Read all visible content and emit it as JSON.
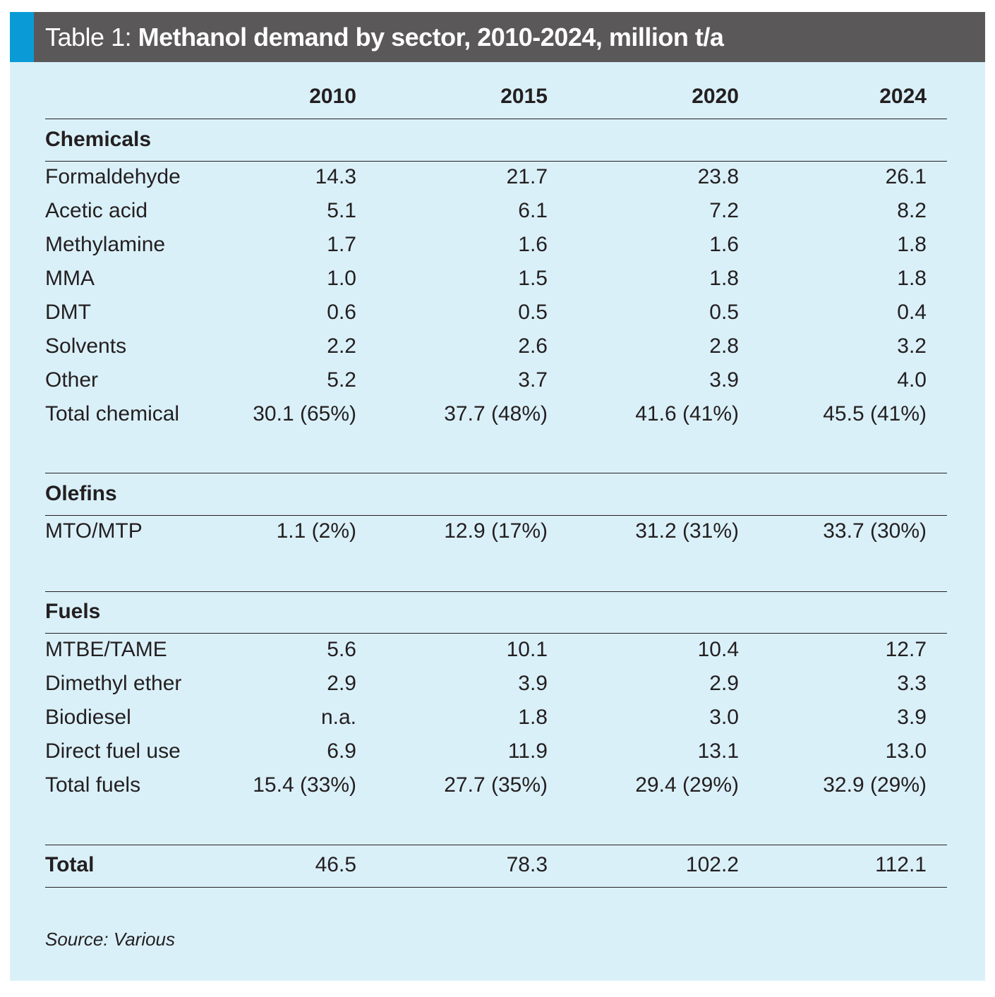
{
  "title": {
    "prefix": "Table 1: ",
    "main": "Methanol demand by sector, 2010-2024, million t/a"
  },
  "columns": [
    "2010",
    "2015",
    "2020",
    "2024"
  ],
  "sections": [
    {
      "name": "Chemicals",
      "rows": [
        {
          "label": "Formaldehyde",
          "values": [
            "14.3",
            "21.7",
            "23.8",
            "26.1"
          ]
        },
        {
          "label": "Acetic acid",
          "values": [
            "5.1",
            "6.1",
            "7.2",
            "8.2"
          ]
        },
        {
          "label": "Methylamine",
          "values": [
            "1.7",
            "1.6",
            "1.6",
            "1.8"
          ]
        },
        {
          "label": "MMA",
          "values": [
            "1.0",
            "1.5",
            "1.8",
            "1.8"
          ]
        },
        {
          "label": "DMT",
          "values": [
            "0.6",
            "0.5",
            "0.5",
            "0.4"
          ]
        },
        {
          "label": "Solvents",
          "values": [
            "2.2",
            "2.6",
            "2.8",
            "3.2"
          ]
        },
        {
          "label": "Other",
          "values": [
            "5.2",
            "3.7",
            "3.9",
            "4.0"
          ]
        },
        {
          "label": "Total chemical",
          "values": [
            "30.1 (65%)",
            "37.7 (48%)",
            "41.6 (41%)",
            "45.5 (41%)"
          ]
        }
      ]
    },
    {
      "name": "Olefins",
      "rows": [
        {
          "label": "MTO/MTP",
          "values": [
            "1.1 (2%)",
            "12.9 (17%)",
            "31.2 (31%)",
            "33.7 (30%)"
          ]
        }
      ]
    },
    {
      "name": "Fuels",
      "rows": [
        {
          "label": "MTBE/TAME",
          "values": [
            "5.6",
            "10.1",
            "10.4",
            "12.7"
          ]
        },
        {
          "label": "Dimethyl ether",
          "values": [
            "2.9",
            "3.9",
            "2.9",
            "3.3"
          ]
        },
        {
          "label": "Biodiesel",
          "values": [
            "n.a.",
            "1.8",
            "3.0",
            "3.9"
          ]
        },
        {
          "label": "Direct fuel use",
          "values": [
            "6.9",
            "11.9",
            "13.1",
            "13.0"
          ]
        },
        {
          "label": "Total fuels",
          "values": [
            "15.4 (33%)",
            "27.7 (35%)",
            "29.4 (29%)",
            "32.9 (29%)"
          ]
        }
      ]
    }
  ],
  "total": {
    "label": "Total",
    "values": [
      "46.5",
      "78.3",
      "102.2",
      "112.1"
    ]
  },
  "source": "Source: Various",
  "colors": {
    "header": "#5a5859",
    "accent": "#0a9bd6",
    "body": "#daf0f9"
  }
}
